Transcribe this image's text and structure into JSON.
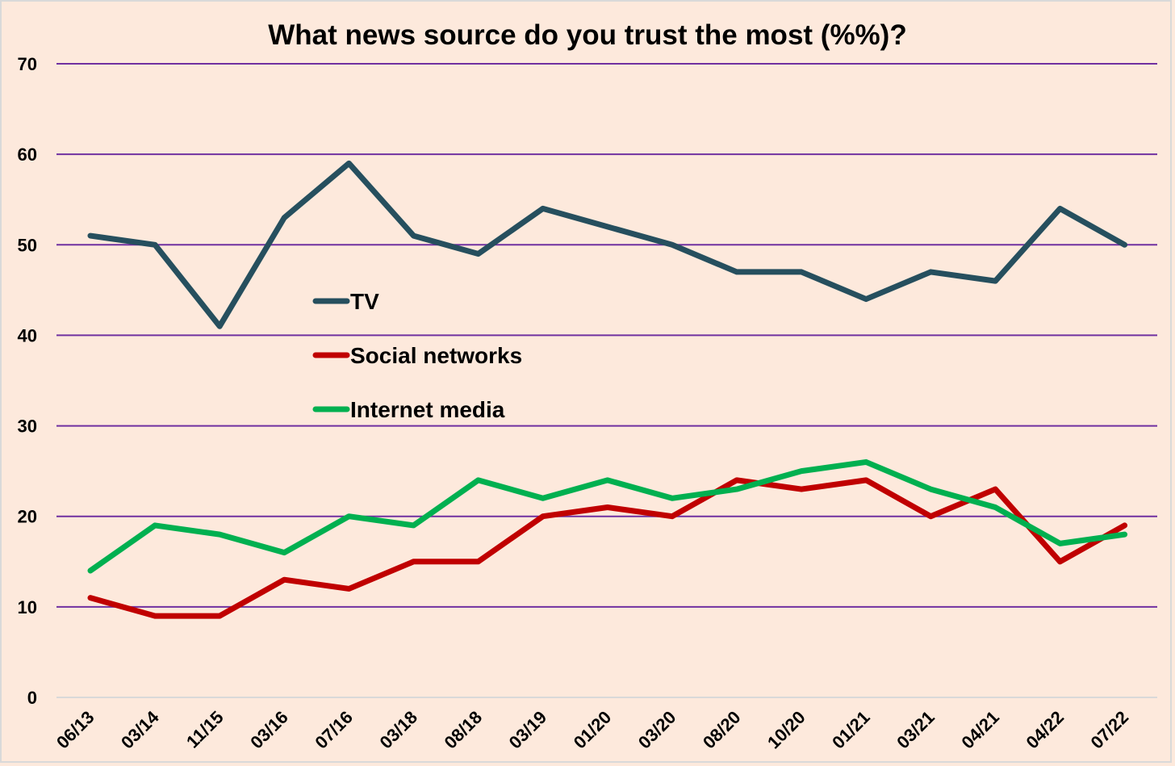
{
  "chart_data": {
    "type": "line",
    "title": "What news source do you trust the most (%%)?",
    "xlabel": "",
    "ylabel": "",
    "ylim": [
      0,
      70
    ],
    "yticks": [
      0,
      10,
      20,
      30,
      40,
      50,
      60,
      70
    ],
    "grid": true,
    "legend_position": "center-left",
    "categories": [
      "06/13",
      "03/14",
      "11/15",
      "03/16",
      "07/16",
      "03/18",
      "08/18",
      "03/19",
      "01/20",
      "03/20",
      "08/20",
      "10/20",
      "01/21",
      "03/21",
      "04/21",
      "04/22",
      "07/22"
    ],
    "series": [
      {
        "name": "TV",
        "color": "#264f5e",
        "values": [
          51,
          50,
          41,
          53,
          59,
          51,
          49,
          54,
          52,
          50,
          47,
          47,
          44,
          47,
          46,
          54,
          50
        ]
      },
      {
        "name": "Social networks",
        "color": "#c00000",
        "values": [
          11,
          9,
          9,
          13,
          12,
          15,
          15,
          20,
          21,
          20,
          24,
          23,
          24,
          20,
          23,
          15,
          19
        ]
      },
      {
        "name": "Internet media",
        "color": "#00b050",
        "values": [
          14,
          19,
          18,
          16,
          20,
          19,
          24,
          22,
          24,
          22,
          23,
          25,
          26,
          23,
          21,
          17,
          18
        ]
      }
    ],
    "gridline_color": "#7030a0",
    "background_color": "#fde9dc"
  }
}
